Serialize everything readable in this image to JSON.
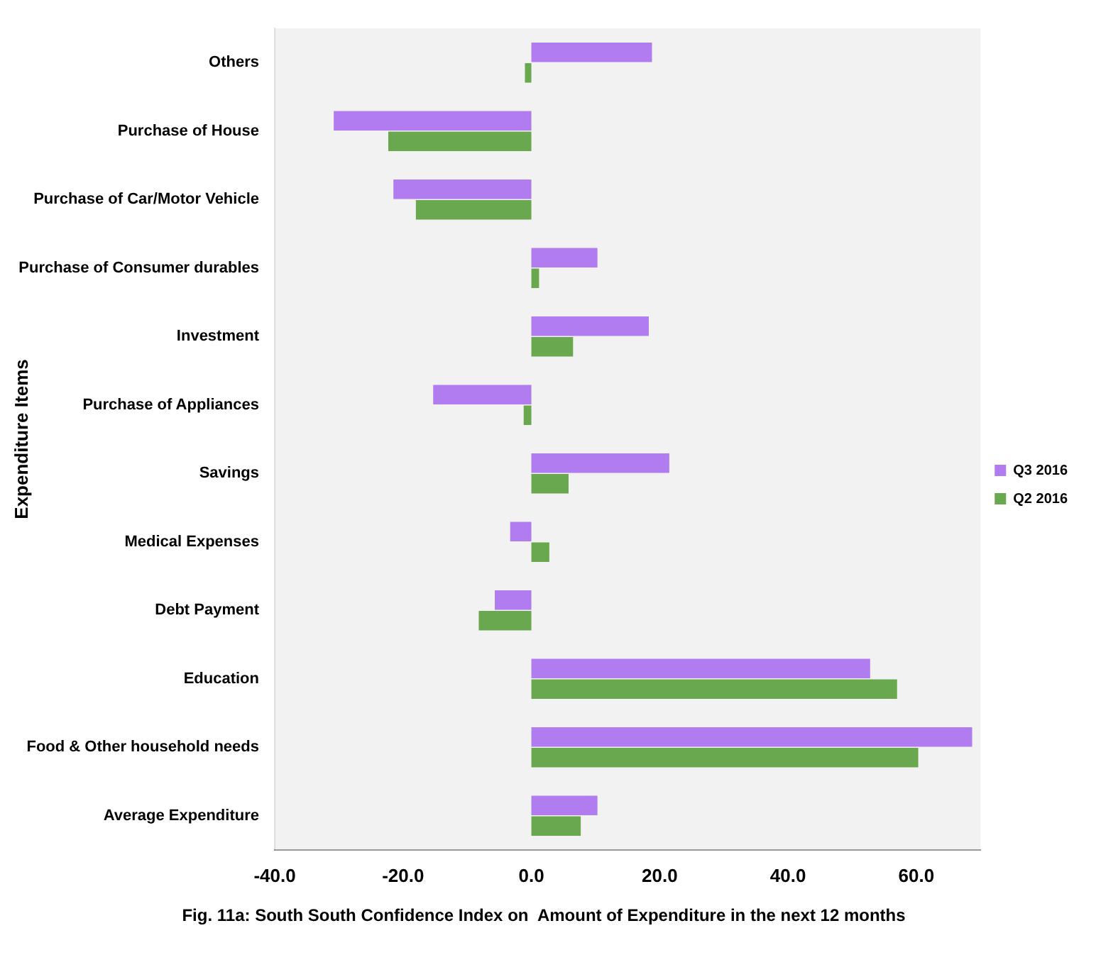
{
  "chart_data": {
    "type": "bar",
    "orientation": "horizontal",
    "title": "Fig. 11a: South South Confidence Index on  Amount of Expenditure in the next 12 months",
    "ylabel": "Expenditure Items",
    "categories": [
      "Others",
      "Purchase of House",
      "Purchase of Car/Motor Vehicle",
      "Purchase of Consumer durables",
      "Investment",
      "Purchase of Appliances",
      "Savings",
      "Medical Expenses",
      "Debt Payment",
      "Education",
      "Food & Other household needs",
      "Average Expenditure"
    ],
    "series": [
      {
        "name": "Q3 2016",
        "color": "#b07cf0",
        "values": [
          18.8,
          -30.8,
          -21.5,
          10.3,
          18.3,
          -15.3,
          21.5,
          -3.3,
          -5.7,
          52.8,
          68.7,
          10.3
        ]
      },
      {
        "name": "Q2 2016",
        "color": "#6aa84f",
        "values": [
          -1.0,
          -22.3,
          -18.0,
          1.2,
          6.5,
          -1.2,
          5.8,
          2.8,
          -8.2,
          57.0,
          60.3,
          7.7
        ]
      }
    ],
    "xlim": [
      -40,
      70
    ],
    "xticks": [
      {
        "value": -40,
        "label": "-40.0"
      },
      {
        "value": -20,
        "label": "-20.0"
      },
      {
        "value": 0,
        "label": "0.0"
      },
      {
        "value": 20,
        "label": "20.0"
      },
      {
        "value": 40,
        "label": "40.0"
      },
      {
        "value": 60,
        "label": "60.0"
      }
    ],
    "grid": false,
    "legend": "right"
  }
}
